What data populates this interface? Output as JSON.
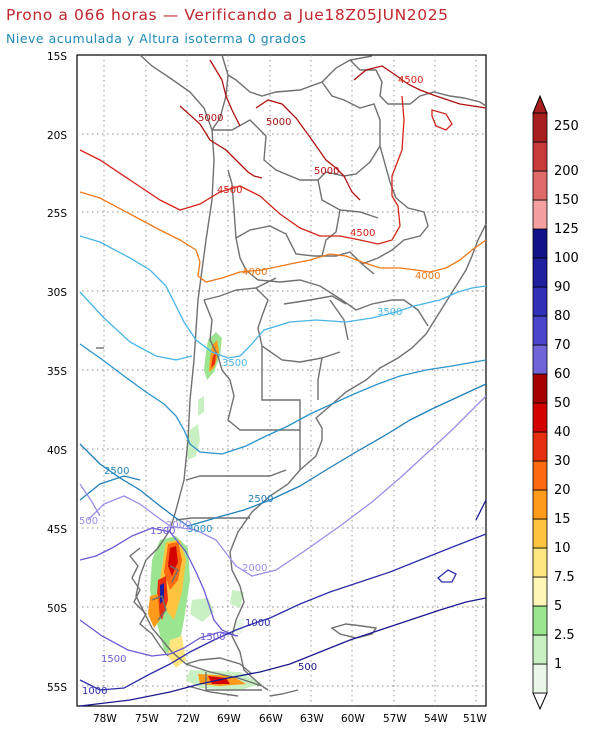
{
  "header": {
    "title": "Prono a 066 horas — Verificando a Jue18Z05JUN2025",
    "subtitle": "Nieve acumulada y Altura isoterma 0 grados"
  },
  "map": {
    "lat_labels": [
      "15S",
      "20S",
      "25S",
      "30S",
      "35S",
      "40S",
      "45S",
      "50S",
      "55S"
    ],
    "lon_labels": [
      "78W",
      "75W",
      "72W",
      "69W",
      "66W",
      "63W",
      "60W",
      "57W",
      "54W",
      "51W"
    ],
    "isotherm_colors": {
      "500": "#1a1a8c",
      "1000": "#2e2ea8",
      "1500": "#6b5bd6",
      "2000": "#9a8ee6",
      "2500": "#1f7fb8",
      "3000": "#2a93c9",
      "3500": "#4ab4e6",
      "4000": "#f07818",
      "4500": "#d42418",
      "5000": "#b01010"
    },
    "contour_labels": [
      {
        "id": "l5000a",
        "text": "5000"
      },
      {
        "id": "l5000b",
        "text": "5000"
      },
      {
        "id": "l5000c",
        "text": "5000"
      },
      {
        "id": "l4500a",
        "text": "4500"
      },
      {
        "id": "l4500b",
        "text": "4500"
      },
      {
        "id": "l4500c",
        "text": "4500"
      },
      {
        "id": "l4000a",
        "text": "4000"
      },
      {
        "id": "l4000b",
        "text": "4000"
      },
      {
        "id": "l3500a",
        "text": "3500"
      },
      {
        "id": "l3500b",
        "text": "3500"
      },
      {
        "id": "l3000a",
        "text": "3000"
      },
      {
        "id": "l2500a",
        "text": "2500"
      },
      {
        "id": "l2500b",
        "text": "2500"
      },
      {
        "id": "l2000a",
        "text": "2000"
      },
      {
        "id": "l2000b",
        "text": "2000"
      },
      {
        "id": "l1500a",
        "text": "1500"
      },
      {
        "id": "l1500b",
        "text": "1500"
      },
      {
        "id": "l1500c",
        "text": "1500"
      },
      {
        "id": "l1000a",
        "text": "1000"
      },
      {
        "id": "l1000b",
        "text": "1000"
      },
      {
        "id": "l500a",
        "text": "500"
      },
      {
        "id": "l500b",
        "text": "500"
      }
    ]
  },
  "colorbar": {
    "levels": [
      "1",
      "2.5",
      "5",
      "7.5",
      "10",
      "15",
      "20",
      "30",
      "40",
      "50",
      "60",
      "70",
      "80",
      "90",
      "100",
      "125",
      "150",
      "200",
      "250"
    ],
    "colors": [
      "#eaf7e8",
      "#c9f0c2",
      "#9be590",
      "#fff6b8",
      "#ffe680",
      "#ffc43d",
      "#ff9a1a",
      "#ff6a10",
      "#e83010",
      "#d40000",
      "#a80000",
      "#6f64d8",
      "#4a44cc",
      "#3030b8",
      "#1f1fa0",
      "#12128a",
      "#f4a0a0",
      "#e06a6a",
      "#c83a3a",
      "#a81e1e"
    ]
  }
}
